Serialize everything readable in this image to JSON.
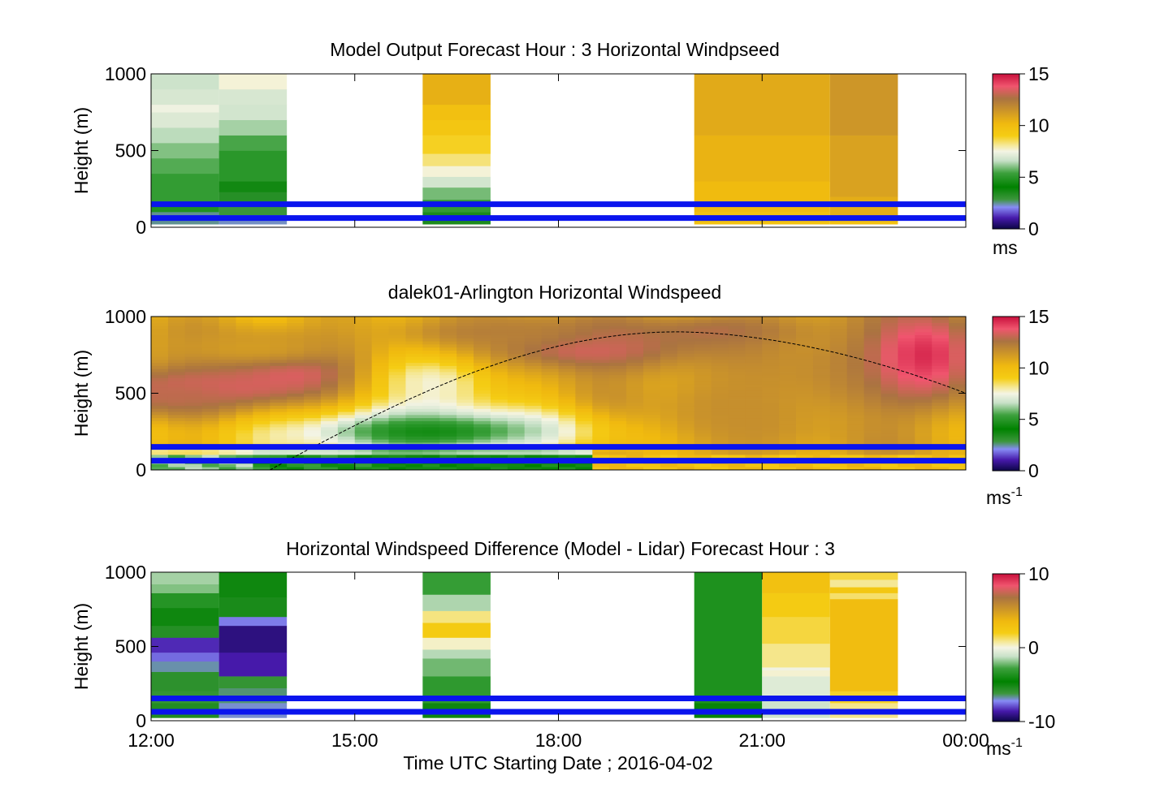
{
  "figure": {
    "xlabel": "Time UTC  Starting Date ; 2016-04-02",
    "x_tick_labels": [
      "12:00",
      "15:00",
      "18:00",
      "21:00",
      "00:00"
    ],
    "x_range_hours": [
      12,
      24
    ]
  },
  "chart_data": [
    {
      "type": "heatmap",
      "title": "Model Output   Forecast Hour : 3 Horizontal Windpseed",
      "ylabel": "Height (m)",
      "ylim": [
        0,
        1000
      ],
      "y_ticks": [
        0,
        500,
        1000
      ],
      "colorbar": {
        "min": 0,
        "max": 15,
        "ticks": [
          0,
          5,
          10,
          15
        ],
        "unit_label": "ms",
        "unit_sup": ""
      },
      "reference_lines_m": [
        150,
        60
      ],
      "cells": [
        {
          "t0": 12,
          "t1": 13,
          "bands": [
            {
              "h0": 20,
              "h1": 100,
              "v": 2.5
            },
            {
              "h0": 100,
              "h1": 150,
              "v": 4.8
            },
            {
              "h0": 150,
              "h1": 350,
              "v": 5.2
            },
            {
              "h0": 350,
              "h1": 450,
              "v": 5.6
            },
            {
              "h0": 450,
              "h1": 550,
              "v": 6.0
            },
            {
              "h0": 550,
              "h1": 650,
              "v": 6.5
            },
            {
              "h0": 650,
              "h1": 750,
              "v": 7.0
            },
            {
              "h0": 750,
              "h1": 800,
              "v": 7.4
            },
            {
              "h0": 800,
              "h1": 900,
              "v": 6.9
            },
            {
              "h0": 900,
              "h1": 1000,
              "v": 6.7
            }
          ]
        },
        {
          "t0": 13,
          "t1": 14,
          "bands": [
            {
              "h0": 20,
              "h1": 80,
              "v": 2.3
            },
            {
              "h0": 80,
              "h1": 150,
              "v": 2.9
            },
            {
              "h0": 150,
              "h1": 230,
              "v": 3.3
            },
            {
              "h0": 230,
              "h1": 300,
              "v": 3.7
            },
            {
              "h0": 300,
              "h1": 500,
              "v": 5.0
            },
            {
              "h0": 500,
              "h1": 600,
              "v": 5.5
            },
            {
              "h0": 600,
              "h1": 700,
              "v": 6.3
            },
            {
              "h0": 700,
              "h1": 800,
              "v": 6.8
            },
            {
              "h0": 800,
              "h1": 900,
              "v": 6.9
            },
            {
              "h0": 900,
              "h1": 1000,
              "v": 7.6
            }
          ]
        },
        {
          "t0": 16,
          "t1": 17,
          "bands": [
            {
              "h0": 20,
              "h1": 100,
              "v": 3.5
            },
            {
              "h0": 100,
              "h1": 180,
              "v": 5.2
            },
            {
              "h0": 180,
              "h1": 260,
              "v": 5.9
            },
            {
              "h0": 260,
              "h1": 330,
              "v": 6.8
            },
            {
              "h0": 330,
              "h1": 400,
              "v": 7.6
            },
            {
              "h0": 400,
              "h1": 480,
              "v": 8.3
            },
            {
              "h0": 480,
              "h1": 600,
              "v": 8.9
            },
            {
              "h0": 600,
              "h1": 700,
              "v": 9.4
            },
            {
              "h0": 700,
              "h1": 800,
              "v": 9.8
            },
            {
              "h0": 800,
              "h1": 1000,
              "v": 10.5
            }
          ]
        },
        {
          "t0": 20,
          "t1": 22,
          "bands": [
            {
              "h0": 20,
              "h1": 100,
              "v": 9.7
            },
            {
              "h0": 100,
              "h1": 300,
              "v": 10.1
            },
            {
              "h0": 300,
              "h1": 600,
              "v": 10.4
            },
            {
              "h0": 600,
              "h1": 1000,
              "v": 10.7
            }
          ]
        },
        {
          "t0": 22,
          "t1": 23,
          "bands": [
            {
              "h0": 20,
              "h1": 60,
              "v": 9.8
            },
            {
              "h0": 60,
              "h1": 200,
              "v": 10.6
            },
            {
              "h0": 200,
              "h1": 600,
              "v": 11.0
            },
            {
              "h0": 600,
              "h1": 1000,
              "v": 11.4
            }
          ]
        }
      ]
    },
    {
      "type": "heatmap",
      "title": "dalek01-Arlington  Horizontal Windspeed",
      "ylabel": "Height (m)",
      "ylim": [
        0,
        1000
      ],
      "y_ticks": [
        0,
        500,
        1000
      ],
      "colorbar": {
        "min": 0,
        "max": 15,
        "ticks": [
          0,
          5,
          10,
          15
        ],
        "unit_label": "ms",
        "unit_sup": "-1"
      },
      "reference_lines_m": [
        150,
        60
      ],
      "data_end_hour": 23.85,
      "profile_curve": {
        "start_hour": 13.75,
        "peak_hour": 19.75,
        "peak_height_m": 900,
        "end_hour": 24.0,
        "end_height_m": 500
      },
      "features": [
        {
          "t": 14.1,
          "h": 650,
          "v": 14.8,
          "st": 1.1,
          "sh": 130
        },
        {
          "t": 13.0,
          "h": 540,
          "v": 13.6,
          "st": 1.3,
          "sh": 110
        },
        {
          "t": 12.4,
          "h": 480,
          "v": 13.0,
          "st": 0.6,
          "sh": 80
        },
        {
          "t": 16.2,
          "h": 620,
          "v": 7.2,
          "st": 0.8,
          "sh": 200
        },
        {
          "t": 16.1,
          "h": 250,
          "v": 4.5,
          "st": 1.6,
          "sh": 110
        },
        {
          "t": 18.5,
          "h": 800,
          "v": 13.5,
          "st": 1.4,
          "sh": 130
        },
        {
          "t": 17.0,
          "h": 900,
          "v": 12.2,
          "st": 1.2,
          "sh": 80
        },
        {
          "t": 20.5,
          "h": 400,
          "v": 11.6,
          "st": 0.9,
          "sh": 260
        },
        {
          "t": 20.5,
          "h": 900,
          "v": 13.0,
          "st": 1.0,
          "sh": 80
        },
        {
          "t": 22.3,
          "h": 650,
          "v": 11.8,
          "st": 1.2,
          "sh": 300
        },
        {
          "t": 23.4,
          "h": 750,
          "v": 14.5,
          "st": 0.6,
          "sh": 220
        },
        {
          "t": 13.5,
          "h": 800,
          "v": 11.2,
          "st": 1.2,
          "sh": 100
        }
      ],
      "near_surface": [
        {
          "t0": 12.0,
          "t1": 13.6,
          "v": 6.0
        },
        {
          "t0": 13.6,
          "t1": 15.2,
          "v": 4.8
        },
        {
          "t0": 15.2,
          "t1": 18.6,
          "v": 4.2
        },
        {
          "t0": 18.6,
          "t1": 24.0,
          "v": 9.8
        }
      ]
    },
    {
      "type": "heatmap",
      "title": "Horizontal Windspeed Difference (Model - Lidar) Forecast Hour : 3",
      "ylabel": "Height (m)",
      "ylim": [
        0,
        1000
      ],
      "y_ticks": [
        0,
        500,
        1000
      ],
      "colorbar": {
        "min": -10,
        "max": 10,
        "ticks": [
          -10,
          0,
          10
        ],
        "unit_label": "ms",
        "unit_sup": "-1"
      },
      "reference_lines_m": [
        150,
        60
      ],
      "cells": [
        {
          "t0": 12,
          "t1": 13,
          "bands": [
            {
              "h0": 20,
              "h1": 120,
              "v": -5.5
            },
            {
              "h0": 120,
              "h1": 200,
              "v": -6.0
            },
            {
              "h0": 200,
              "h1": 330,
              "v": -5.8
            },
            {
              "h0": 330,
              "h1": 400,
              "v": -6.8
            },
            {
              "h0": 400,
              "h1": 460,
              "v": -7.6
            },
            {
              "h0": 460,
              "h1": 560,
              "v": -8.4
            },
            {
              "h0": 560,
              "h1": 640,
              "v": -5.6
            },
            {
              "h0": 640,
              "h1": 760,
              "v": -5.0
            },
            {
              "h0": 760,
              "h1": 860,
              "v": -3.5
            },
            {
              "h0": 860,
              "h1": 920,
              "v": -2.0
            },
            {
              "h0": 920,
              "h1": 1000,
              "v": -1.6
            }
          ]
        },
        {
          "t0": 13,
          "t1": 14,
          "bands": [
            {
              "h0": 20,
              "h1": 120,
              "v": -7.0
            },
            {
              "h0": 120,
              "h1": 220,
              "v": -6.5
            },
            {
              "h0": 220,
              "h1": 300,
              "v": -6.0
            },
            {
              "h0": 300,
              "h1": 460,
              "v": -8.6
            },
            {
              "h0": 460,
              "h1": 640,
              "v": -9.2
            },
            {
              "h0": 640,
              "h1": 700,
              "v": -7.4
            },
            {
              "h0": 700,
              "h1": 830,
              "v": -5.3
            },
            {
              "h0": 830,
              "h1": 1000,
              "v": -5.0
            }
          ]
        },
        {
          "t0": 16,
          "t1": 17,
          "bands": [
            {
              "h0": 20,
              "h1": 120,
              "v": -5.0
            },
            {
              "h0": 120,
              "h1": 300,
              "v": -3.2
            },
            {
              "h0": 300,
              "h1": 420,
              "v": -2.2
            },
            {
              "h0": 420,
              "h1": 480,
              "v": -1.4
            },
            {
              "h0": 480,
              "h1": 560,
              "v": 0.3
            },
            {
              "h0": 560,
              "h1": 660,
              "v": 2.2
            },
            {
              "h0": 660,
              "h1": 740,
              "v": 1.0
            },
            {
              "h0": 740,
              "h1": 850,
              "v": -1.5
            },
            {
              "h0": 850,
              "h1": 1000,
              "v": -3.0
            }
          ]
        },
        {
          "t0": 20,
          "t1": 21,
          "bands": [
            {
              "h0": 20,
              "h1": 120,
              "v": -4.8
            },
            {
              "h0": 120,
              "h1": 1000,
              "v": -3.7
            }
          ]
        },
        {
          "t0": 21,
          "t1": 22,
          "bands": [
            {
              "h0": 20,
              "h1": 150,
              "v": -1.0
            },
            {
              "h0": 150,
              "h1": 300,
              "v": -0.6
            },
            {
              "h0": 300,
              "h1": 340,
              "v": 0.2
            },
            {
              "h0": 340,
              "h1": 360,
              "v": -0.1
            },
            {
              "h0": 360,
              "h1": 520,
              "v": 0.9
            },
            {
              "h0": 520,
              "h1": 700,
              "v": 1.6
            },
            {
              "h0": 700,
              "h1": 860,
              "v": 2.2
            },
            {
              "h0": 860,
              "h1": 1000,
              "v": 3.0
            }
          ]
        },
        {
          "t0": 22,
          "t1": 23,
          "bands": [
            {
              "h0": 20,
              "h1": 120,
              "v": 0.9
            },
            {
              "h0": 120,
              "h1": 200,
              "v": 1.8
            },
            {
              "h0": 200,
              "h1": 820,
              "v": 3.3
            },
            {
              "h0": 820,
              "h1": 860,
              "v": 1.2
            },
            {
              "h0": 860,
              "h1": 900,
              "v": 2.5
            },
            {
              "h0": 900,
              "h1": 950,
              "v": 0.8
            },
            {
              "h0": 950,
              "h1": 1000,
              "v": 1.6
            }
          ]
        }
      ]
    }
  ]
}
